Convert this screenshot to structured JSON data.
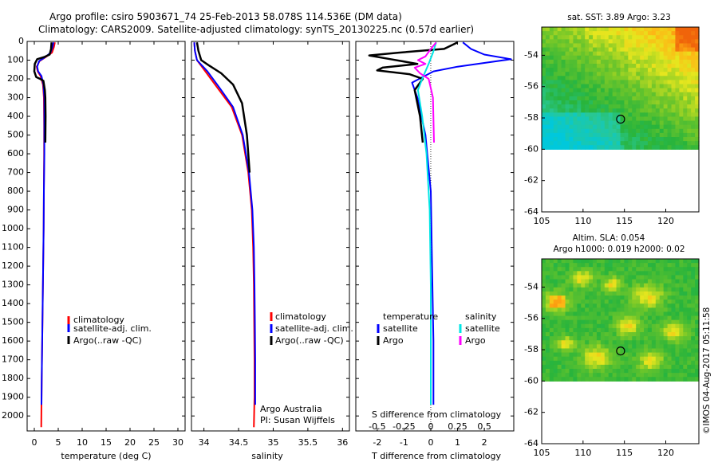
{
  "title": {
    "line1": "Argo profile: csiro 5903671_74 25-Feb-2013 58.078S 114.536E (DM data)",
    "line2": "Climatology: CARS2009. Satellite-adjusted climatology: synTS_20130225.nc (0.57d earlier)"
  },
  "legend": {
    "climatology": "climatology",
    "satellite_adj": "satellite-adj. clim.",
    "argo_raw": "Argo(..raw -QC)",
    "temperature_head": "temperature",
    "salinity_head": "salinity",
    "satellite": "satellite",
    "argo": "Argo"
  },
  "credit": {
    "line1": "Argo Australia",
    "line2": "PI: Susan Wijffels"
  },
  "stamp": "©IMOS 04-Aug-2017 05:11:58",
  "colors": {
    "climatology": "#ff0000",
    "satellite": "#0000ff",
    "argo": "#000000",
    "sal_satellite": "#00e5e5",
    "sal_argo": "#ff00ff"
  },
  "depth_axis": {
    "range": [
      0,
      2080
    ],
    "ticks": [
      0,
      100,
      200,
      300,
      400,
      500,
      600,
      700,
      800,
      900,
      1000,
      1100,
      1200,
      1300,
      1400,
      1500,
      1600,
      1700,
      1800,
      1900,
      2000
    ]
  },
  "chart_data": [
    {
      "type": "line",
      "name": "temperature-profile",
      "xlabel": "temperature (deg C)",
      "ylabel": "",
      "xlim": [
        -1.5,
        31.5
      ],
      "xticks": [
        0,
        5,
        10,
        15,
        20,
        25,
        30
      ],
      "ylim": [
        2080,
        0
      ],
      "series": [
        {
          "name": "climatology",
          "color": "#ff0000",
          "width": 2,
          "depth_max": 2060,
          "points": [
            [
              4.3,
              5
            ],
            [
              4.1,
              30
            ],
            [
              3.7,
              60
            ],
            [
              2.3,
              85
            ],
            [
              1.1,
              105
            ],
            [
              0.5,
              135
            ],
            [
              0.7,
              160
            ],
            [
              1.3,
              185
            ],
            [
              1.8,
              230
            ],
            [
              2.0,
              300
            ],
            [
              2.05,
              450
            ],
            [
              2.05,
              600
            ],
            [
              2.0,
              800
            ],
            [
              1.95,
              1000
            ],
            [
              1.85,
              1200
            ],
            [
              1.75,
              1400
            ],
            [
              1.65,
              1600
            ],
            [
              1.55,
              1800
            ],
            [
              1.45,
              2060
            ]
          ]
        },
        {
          "name": "satellite-adj. clim.",
          "color": "#0000ff",
          "width": 2,
          "depth_max": 1940,
          "points": [
            [
              4.0,
              5
            ],
            [
              3.8,
              30
            ],
            [
              3.4,
              60
            ],
            [
              2.2,
              85
            ],
            [
              1.0,
              105
            ],
            [
              0.6,
              135
            ],
            [
              0.8,
              160
            ],
            [
              1.5,
              185
            ],
            [
              1.9,
              230
            ],
            [
              2.1,
              300
            ],
            [
              2.1,
              450
            ],
            [
              2.1,
              600
            ],
            [
              2.0,
              800
            ],
            [
              1.95,
              1000
            ],
            [
              1.85,
              1200
            ],
            [
              1.75,
              1400
            ],
            [
              1.65,
              1600
            ],
            [
              1.55,
              1800
            ],
            [
              1.5,
              1940
            ]
          ]
        },
        {
          "name": "Argo(..raw -QC)",
          "color": "#000000",
          "width": 2.5,
          "depth_max": 540,
          "points": [
            [
              3.6,
              5
            ],
            [
              3.5,
              40
            ],
            [
              3.2,
              70
            ],
            [
              2.2,
              82
            ],
            [
              0.6,
              95
            ],
            [
              0.1,
              120
            ],
            [
              0.0,
              160
            ],
            [
              0.4,
              190
            ],
            [
              1.2,
              200
            ],
            [
              1.9,
              210
            ],
            [
              2.2,
              260
            ],
            [
              2.3,
              300
            ],
            [
              2.35,
              400
            ],
            [
              2.3,
              540
            ]
          ]
        }
      ]
    },
    {
      "type": "line",
      "name": "salinity-profile",
      "xlabel": "salinity",
      "ylabel": "",
      "xlim": [
        33.82,
        36.1
      ],
      "xticks": [
        34,
        34.5,
        35,
        35.5,
        36
      ],
      "ylim": [
        2080,
        0
      ],
      "series": [
        {
          "name": "climatology",
          "color": "#ff0000",
          "width": 2,
          "depth_max": 2060,
          "points": [
            [
              33.86,
              5
            ],
            [
              33.87,
              50
            ],
            [
              33.9,
              100
            ],
            [
              34.02,
              160
            ],
            [
              34.2,
              250
            ],
            [
              34.4,
              350
            ],
            [
              34.55,
              500
            ],
            [
              34.64,
              700
            ],
            [
              34.69,
              900
            ],
            [
              34.71,
              1100
            ],
            [
              34.72,
              1300
            ],
            [
              34.725,
              1500
            ],
            [
              34.73,
              1700
            ],
            [
              34.73,
              1900
            ],
            [
              34.72,
              2060
            ]
          ]
        },
        {
          "name": "satellite-adj. clim.",
          "color": "#0000ff",
          "width": 2,
          "depth_max": 1940,
          "points": [
            [
              33.86,
              5
            ],
            [
              33.87,
              50
            ],
            [
              33.9,
              100
            ],
            [
              34.05,
              160
            ],
            [
              34.23,
              250
            ],
            [
              34.42,
              350
            ],
            [
              34.56,
              500
            ],
            [
              34.65,
              700
            ],
            [
              34.7,
              900
            ],
            [
              34.72,
              1100
            ],
            [
              34.73,
              1300
            ],
            [
              34.735,
              1500
            ],
            [
              34.74,
              1700
            ],
            [
              34.74,
              1940
            ]
          ]
        },
        {
          "name": "Argo(..raw -QC)",
          "color": "#000000",
          "width": 2.5,
          "depth_max": 700,
          "points": [
            [
              33.9,
              5
            ],
            [
              33.92,
              50
            ],
            [
              33.96,
              100
            ],
            [
              34.08,
              130
            ],
            [
              34.25,
              170
            ],
            [
              34.42,
              230
            ],
            [
              34.55,
              330
            ],
            [
              34.62,
              500
            ],
            [
              34.66,
              700
            ]
          ]
        }
      ]
    },
    {
      "type": "line",
      "name": "difference-profile",
      "xlabel": "T difference from climatology",
      "xlabel2": "S difference from climatology",
      "xlim": [
        -2.8,
        3.1
      ],
      "xticks": [
        -2,
        -1,
        0,
        1,
        2
      ],
      "xlim_salinity": [
        -0.7,
        0.775
      ],
      "xticks_salinity": [
        -0.5,
        -0.25,
        0,
        0.25,
        0.5
      ],
      "ylim": [
        2080,
        0
      ],
      "series": [
        {
          "name": "temperature satellite",
          "color": "#0000ff",
          "width": 2,
          "depth_max": 1940,
          "points": [
            [
              1.2,
              5
            ],
            [
              1.5,
              40
            ],
            [
              2.0,
              70
            ],
            [
              3.0,
              95
            ],
            [
              2.0,
              115
            ],
            [
              1.0,
              135
            ],
            [
              0.1,
              160
            ],
            [
              -0.7,
              220
            ],
            [
              -0.5,
              300
            ],
            [
              -0.2,
              500
            ],
            [
              0.0,
              800
            ],
            [
              0.05,
              1200
            ],
            [
              0.1,
              1600
            ],
            [
              0.1,
              1940
            ]
          ]
        },
        {
          "name": "temperature Argo",
          "color": "#000000",
          "width": 2.5,
          "depth_max": 540,
          "points": [
            [
              1.0,
              5
            ],
            [
              0.5,
              40
            ],
            [
              -1.2,
              60
            ],
            [
              -2.3,
              75
            ],
            [
              -1.5,
              95
            ],
            [
              -0.5,
              120
            ],
            [
              -1.8,
              140
            ],
            [
              -2.0,
              155
            ],
            [
              -0.8,
              175
            ],
            [
              -0.3,
              200
            ],
            [
              -0.6,
              260
            ],
            [
              -0.4,
              400
            ],
            [
              -0.3,
              540
            ]
          ]
        },
        {
          "name": "salinity satellite",
          "color": "#00e5e5",
          "width": 2,
          "depth_max": 1940,
          "points": [
            [
              0.05,
              5
            ],
            [
              0.02,
              60
            ],
            [
              -0.02,
              120
            ],
            [
              -0.08,
              200
            ],
            [
              -0.12,
              260
            ],
            [
              -0.08,
              400
            ],
            [
              -0.04,
              600
            ],
            [
              -0.01,
              900
            ],
            [
              0.0,
              1300
            ],
            [
              0.0,
              1940
            ]
          ]
        },
        {
          "name": "salinity Argo",
          "color": "#ff00ff",
          "width": 2,
          "depth_max": 540,
          "points": [
            [
              0.05,
              5
            ],
            [
              0.0,
              40
            ],
            [
              -0.05,
              80
            ],
            [
              -0.12,
              100
            ],
            [
              -0.05,
              120
            ],
            [
              -0.15,
              140
            ],
            [
              -0.1,
              170
            ],
            [
              -0.02,
              200
            ],
            [
              0.02,
              300
            ],
            [
              0.03,
              540
            ]
          ]
        }
      ]
    },
    {
      "type": "heatmap",
      "name": "sst-map",
      "title": "sat. SST: 3.89 Argo: 3.23",
      "xticks": [
        105,
        110,
        115,
        120
      ],
      "yticks": [
        -54,
        -56,
        -58,
        -60,
        -62,
        -64
      ],
      "xlim": [
        105,
        124
      ],
      "ylim": [
        -64,
        -52.2
      ],
      "data_ylim": [
        -60,
        -52.2
      ],
      "marker": [
        114.536,
        -58.078
      ]
    },
    {
      "type": "heatmap",
      "name": "sla-map",
      "title": "Altim. SLA: 0.054",
      "subtitle": "Argo h1000: 0.019 h2000: 0.02",
      "xticks": [
        105,
        110,
        115,
        120
      ],
      "yticks": [
        -54,
        -56,
        -58,
        -60,
        -62,
        -64
      ],
      "xlim": [
        105,
        124
      ],
      "ylim": [
        -64,
        -52.2
      ],
      "data_ylim": [
        -60,
        -52.2
      ],
      "marker": [
        114.536,
        -58.078
      ]
    }
  ]
}
